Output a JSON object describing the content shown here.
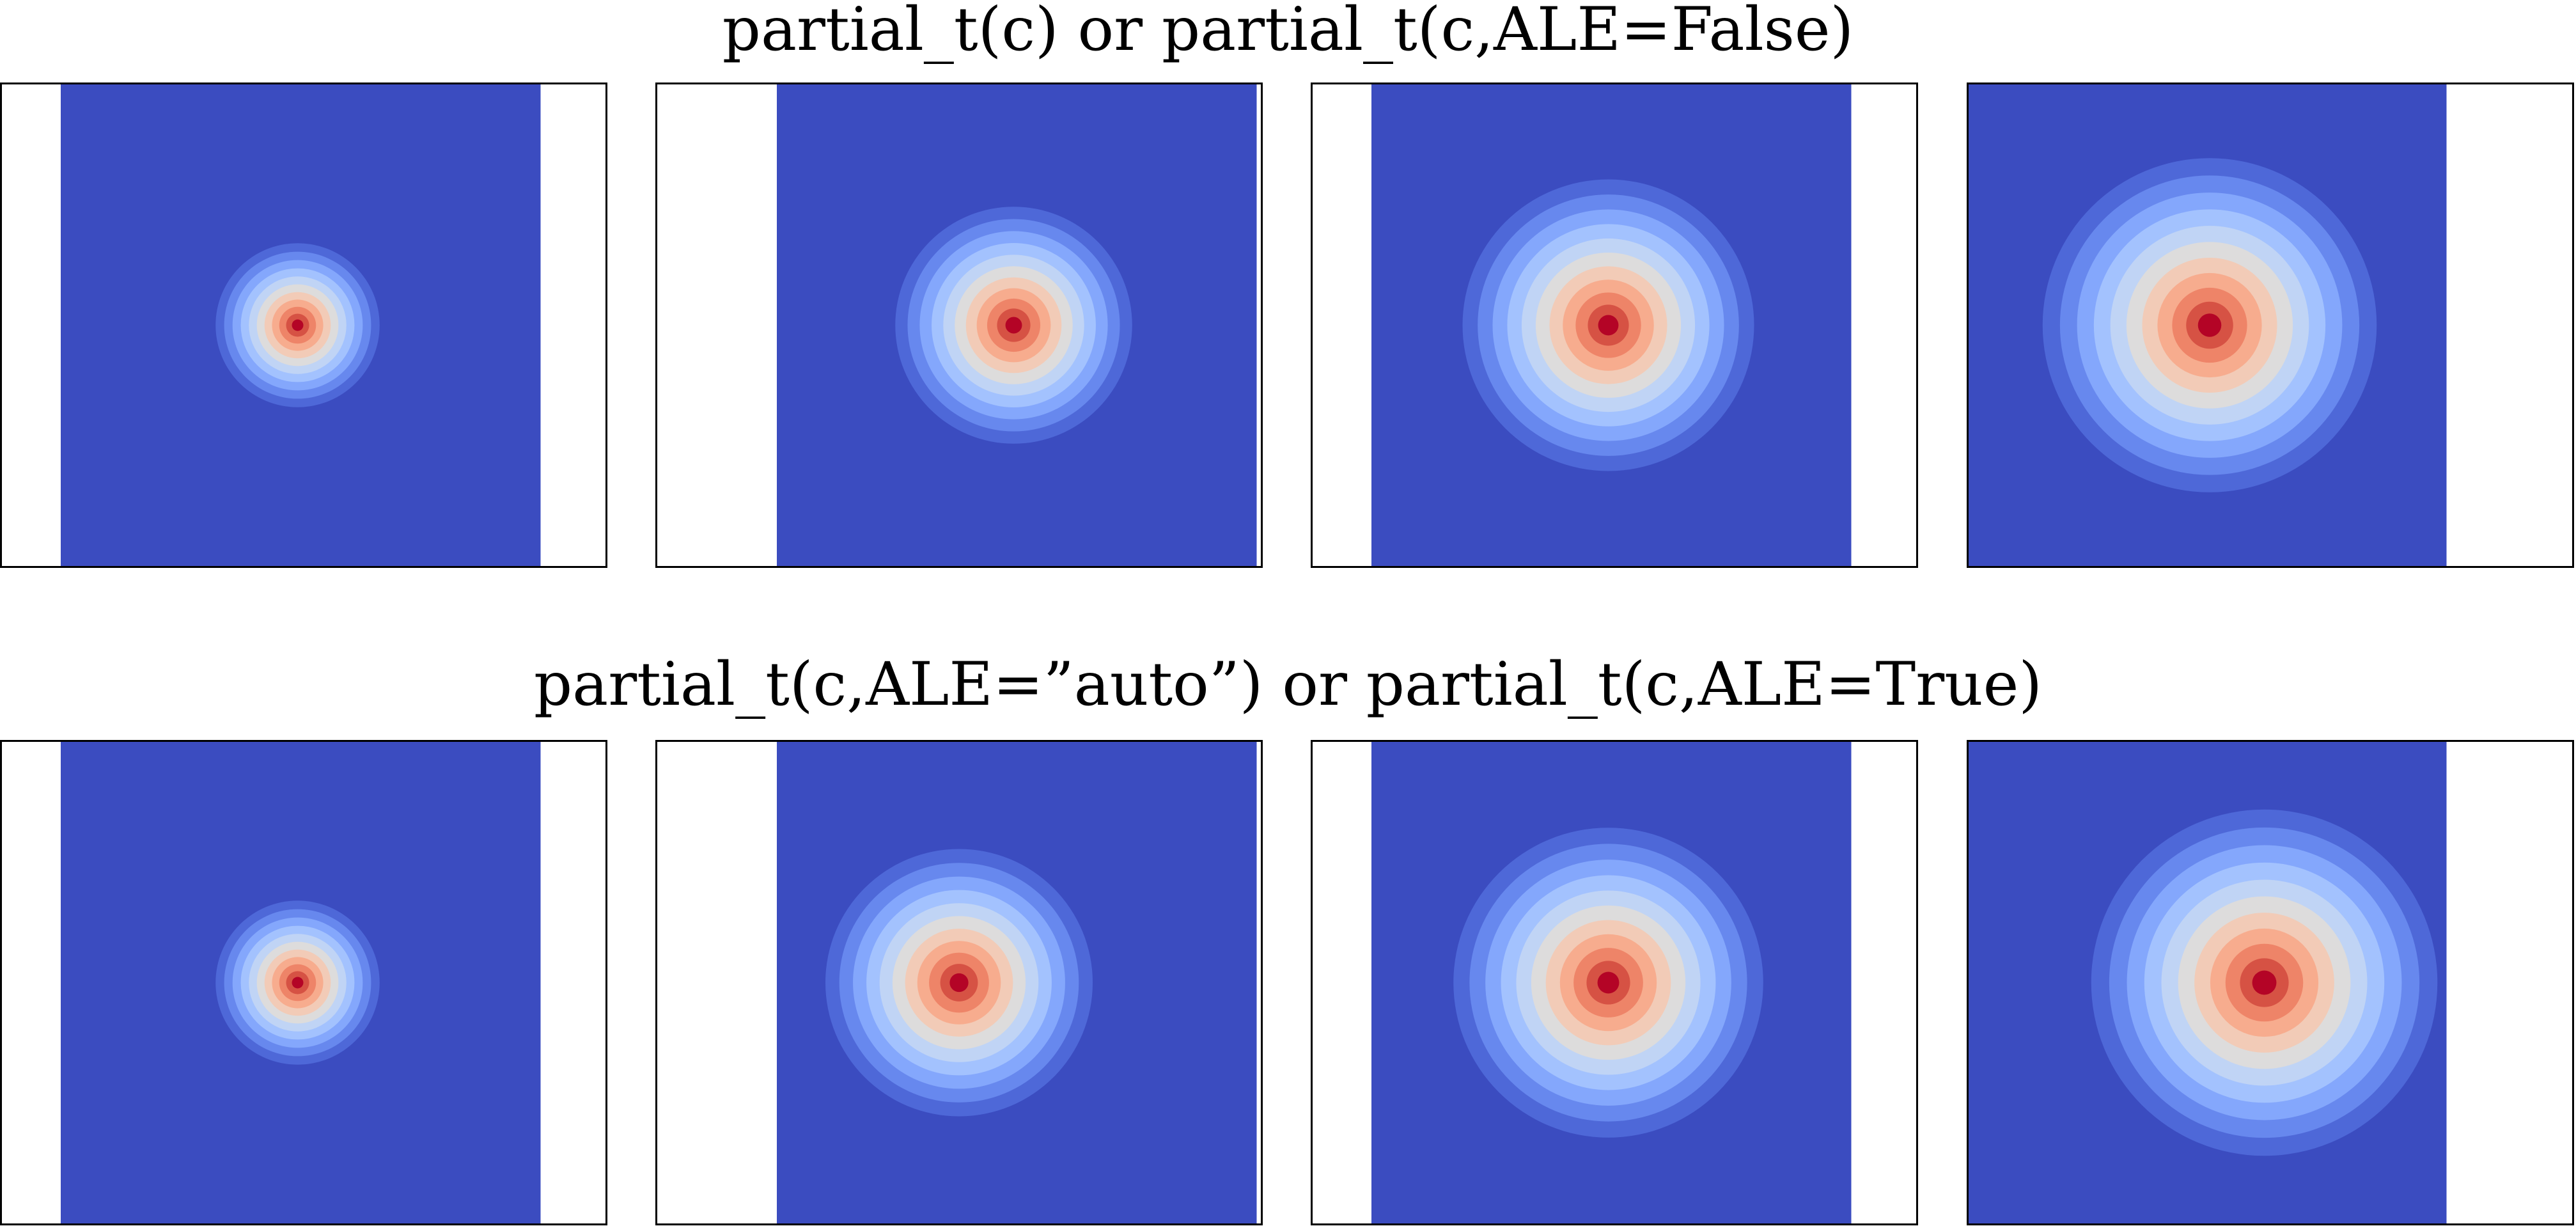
{
  "rows": [
    {
      "title": "partial_t(c) or partial_t(c,ALE=False)"
    },
    {
      "title": "partial_t(c,ALE=”auto”) or partial_t(c,ALE=True)"
    }
  ],
  "colormap": [
    "#3b4cc0",
    "#4e68d8",
    "#6788ee",
    "#84a7fc",
    "#a3c2fe",
    "#c0d4f5",
    "#dddcdc",
    "#f2cbb7",
    "#f7ac8e",
    "#ee8468",
    "#d65244",
    "#b40426"
  ],
  "chart_data": [
    {
      "type": "contour",
      "row": 0,
      "title": "partial_t(c) or partial_t(c,ALE=False)",
      "panels": [
        {
          "domain": [
            0.1,
            0.89
          ],
          "blob_center": [
            0.49,
            0.5
          ],
          "blob_radius": 0.135,
          "levels": 12,
          "clip_right": false
        },
        {
          "domain": [
            0.2,
            0.99
          ],
          "blob_center": [
            0.59,
            0.5
          ],
          "blob_radius": 0.195,
          "levels": 12,
          "clip_right": false
        },
        {
          "domain": [
            0.1,
            0.89
          ],
          "blob_center": [
            0.49,
            0.5
          ],
          "blob_radius": 0.24,
          "levels": 12,
          "clip_right": false
        },
        {
          "domain": [
            0.0,
            0.79
          ],
          "blob_center": [
            0.4,
            0.5
          ],
          "blob_radius": 0.275,
          "levels": 12,
          "clip_right": false
        }
      ]
    },
    {
      "type": "contour",
      "row": 1,
      "title": "partial_t(c,ALE=”auto”) or partial_t(c,ALE=True)",
      "panels": [
        {
          "domain": [
            0.1,
            0.89
          ],
          "blob_center": [
            0.49,
            0.5
          ],
          "blob_radius": 0.135,
          "levels": 12,
          "clip_right": false
        },
        {
          "domain": [
            0.2,
            0.99
          ],
          "blob_center": [
            0.5,
            0.5
          ],
          "blob_radius": 0.22,
          "levels": 12,
          "clip_right": false
        },
        {
          "domain": [
            0.1,
            0.89
          ],
          "blob_center": [
            0.49,
            0.5
          ],
          "blob_radius": 0.255,
          "levels": 12,
          "clip_right": false
        },
        {
          "domain": [
            0.0,
            0.79
          ],
          "blob_center": [
            0.49,
            0.5
          ],
          "blob_radius": 0.285,
          "levels": 12,
          "clip_right": true
        }
      ]
    }
  ]
}
